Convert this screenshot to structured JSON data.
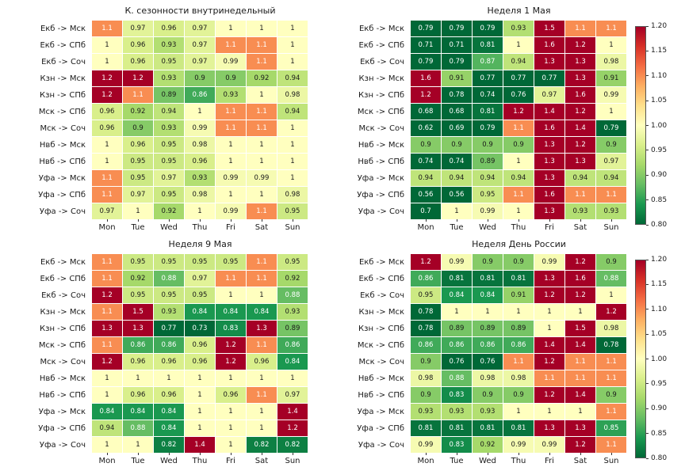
{
  "colormap": [
    "#006837",
    "#1a9850",
    "#66bd63",
    "#a6d96a",
    "#d9ef8b",
    "#ffffbf",
    "#fee08b",
    "#fdae61",
    "#f46d43",
    "#d73027",
    "#a50026"
  ],
  "colorbar": {
    "ticks": [
      "1.20",
      "1.15",
      "1.10",
      "1.05",
      "1.00",
      "0.95",
      "0.90",
      "0.85",
      "0.80"
    ],
    "vmin": 0.8,
    "vmax": 1.2
  },
  "chart_data": [
    {
      "type": "heatmap",
      "title": "К. сезонности внутринедельный",
      "colorbar": false,
      "vmin": 0.8,
      "vmax": 1.2,
      "columns": [
        "Mon",
        "Tue",
        "Wed",
        "Thu",
        "Fri",
        "Sat",
        "Sun"
      ],
      "rows": [
        "Екб -> Мск",
        "Екб -> СПб",
        "Екб -> Соч",
        "Кзн -> Мск",
        "Кзн -> СПб",
        "Мск -> СПб",
        "Мск -> Соч",
        "Нвб -> Мск",
        "Нвб -> СПб",
        "Уфа -> Мск",
        "Уфа -> СПб",
        "Уфа -> Соч"
      ],
      "values": [
        [
          1.1,
          0.97,
          0.96,
          0.97,
          1,
          1,
          1
        ],
        [
          1,
          0.96,
          0.93,
          0.97,
          1.1,
          1.1,
          1
        ],
        [
          1,
          0.96,
          0.95,
          0.97,
          0.99,
          1.1,
          1
        ],
        [
          1.2,
          1.2,
          0.93,
          0.9,
          0.9,
          0.92,
          0.94
        ],
        [
          1.2,
          1.1,
          0.89,
          0.86,
          0.93,
          1,
          0.98
        ],
        [
          0.96,
          0.92,
          0.94,
          1,
          1.1,
          1.1,
          0.94
        ],
        [
          0.96,
          0.9,
          0.93,
          0.99,
          1.1,
          1.1,
          1
        ],
        [
          1,
          0.96,
          0.95,
          0.98,
          1,
          1,
          1
        ],
        [
          1,
          0.95,
          0.95,
          0.96,
          1,
          1,
          1
        ],
        [
          1.1,
          0.95,
          0.97,
          0.93,
          0.99,
          0.99,
          1
        ],
        [
          1.1,
          0.97,
          0.95,
          0.98,
          1,
          1,
          0.98
        ],
        [
          0.97,
          1,
          0.92,
          1,
          0.99,
          1.1,
          0.95
        ]
      ]
    },
    {
      "type": "heatmap",
      "title": "Неделя 1 Мая",
      "colorbar": true,
      "vmin": 0.8,
      "vmax": 1.2,
      "columns": [
        "Mon",
        "Tue",
        "Wed",
        "Thu",
        "Fri",
        "Sat",
        "Sun"
      ],
      "rows": [
        "Екб -> Мск",
        "Екб -> СПб",
        "Екб -> Соч",
        "Кзн -> Мск",
        "Кзн -> СПб",
        "Мск -> СПб",
        "Мск -> Соч",
        "Нвб -> Мск",
        "Нвб -> СПб",
        "Уфа -> Мск",
        "Уфа -> СПб",
        "Уфа -> Соч"
      ],
      "values": [
        [
          0.79,
          0.79,
          0.79,
          0.93,
          1.5,
          1.1,
          1.1
        ],
        [
          0.71,
          0.71,
          0.81,
          1,
          1.6,
          1.2,
          1
        ],
        [
          0.79,
          0.79,
          0.87,
          0.94,
          1.3,
          1.3,
          0.98
        ],
        [
          1.6,
          0.91,
          0.77,
          0.77,
          0.77,
          1.3,
          0.91
        ],
        [
          1.2,
          0.78,
          0.74,
          0.76,
          0.97,
          1.6,
          0.99
        ],
        [
          0.68,
          0.68,
          0.81,
          1.2,
          1.4,
          1.2,
          1
        ],
        [
          0.62,
          0.69,
          0.79,
          1.1,
          1.6,
          1.4,
          0.79
        ],
        [
          0.9,
          0.9,
          0.9,
          0.9,
          1.3,
          1.2,
          0.9
        ],
        [
          0.74,
          0.74,
          0.89,
          1,
          1.3,
          1.3,
          0.97
        ],
        [
          0.94,
          0.94,
          0.94,
          0.94,
          1.3,
          0.94,
          0.94
        ],
        [
          0.56,
          0.56,
          0.95,
          1.1,
          1.6,
          1.1,
          1.1
        ],
        [
          0.7,
          1,
          0.99,
          1,
          1.3,
          0.93,
          0.93
        ]
      ]
    },
    {
      "type": "heatmap",
      "title": "Неделя 9 Мая",
      "colorbar": false,
      "vmin": 0.8,
      "vmax": 1.2,
      "columns": [
        "Mon",
        "Tue",
        "Wed",
        "Thu",
        "Fri",
        "Sat",
        "Sun"
      ],
      "rows": [
        "Екб -> Мск",
        "Екб -> СПб",
        "Екб -> Соч",
        "Кзн -> Мск",
        "Кзн -> СПб",
        "Мск -> СПб",
        "Мск -> Соч",
        "Нвб -> Мск",
        "Нвб -> СПб",
        "Уфа -> Мск",
        "Уфа -> СПб",
        "Уфа -> Соч"
      ],
      "values": [
        [
          1.1,
          0.95,
          0.95,
          0.95,
          0.95,
          1.1,
          0.95
        ],
        [
          1.1,
          0.92,
          0.88,
          0.97,
          1.1,
          1.1,
          0.92
        ],
        [
          1.2,
          0.95,
          0.95,
          0.95,
          1,
          1,
          0.88
        ],
        [
          1.1,
          1.5,
          0.93,
          0.84,
          0.84,
          0.84,
          0.93
        ],
        [
          1.3,
          1.3,
          0.77,
          0.73,
          0.83,
          1.3,
          0.89
        ],
        [
          1.1,
          0.86,
          0.86,
          0.96,
          1.2,
          1.1,
          0.86
        ],
        [
          1.2,
          0.96,
          0.96,
          0.96,
          1.2,
          0.96,
          0.84
        ],
        [
          1,
          1,
          1,
          1,
          1,
          1,
          1
        ],
        [
          1,
          0.96,
          0.96,
          1,
          0.96,
          1.1,
          0.97
        ],
        [
          0.84,
          0.84,
          0.84,
          1,
          1,
          1,
          1.4
        ],
        [
          0.94,
          0.88,
          0.84,
          1,
          1,
          1,
          1.2
        ],
        [
          1,
          1,
          0.82,
          1.4,
          1,
          0.82,
          0.82
        ]
      ]
    },
    {
      "type": "heatmap",
      "title": "Неделя День России",
      "colorbar": true,
      "vmin": 0.8,
      "vmax": 1.2,
      "columns": [
        "Mon",
        "Tue",
        "Wed",
        "Thu",
        "Fri",
        "Sat",
        "Sun"
      ],
      "rows": [
        "Екб -> Мск",
        "Екб -> СПб",
        "Екб -> Соч",
        "Кзн -> Мск",
        "Кзн -> СПб",
        "Мск -> СПб",
        "Мск -> Соч",
        "Нвб -> Мск",
        "Нвб -> СПб",
        "Уфа -> Мск",
        "Уфа -> СПб",
        "Уфа -> Соч"
      ],
      "values": [
        [
          1.2,
          0.99,
          0.9,
          0.9,
          0.99,
          1.2,
          0.9
        ],
        [
          0.86,
          0.81,
          0.81,
          0.81,
          1.3,
          1.6,
          0.88
        ],
        [
          0.95,
          0.84,
          0.84,
          0.91,
          1.2,
          1.2,
          1
        ],
        [
          0.78,
          1,
          1,
          1,
          1,
          1,
          1.2
        ],
        [
          0.78,
          0.89,
          0.89,
          0.89,
          1,
          1.5,
          0.98
        ],
        [
          0.86,
          0.86,
          0.86,
          0.86,
          1.4,
          1.4,
          0.78
        ],
        [
          0.9,
          0.76,
          0.76,
          1.1,
          1.2,
          1.1,
          1.1
        ],
        [
          0.98,
          0.88,
          0.98,
          0.98,
          1.1,
          1.1,
          1.1
        ],
        [
          0.9,
          0.83,
          0.9,
          0.9,
          1.2,
          1.4,
          0.9
        ],
        [
          0.93,
          0.93,
          0.93,
          1,
          1,
          1,
          1.1
        ],
        [
          0.81,
          0.81,
          0.81,
          0.81,
          1.3,
          1.3,
          0.85
        ],
        [
          0.99,
          0.83,
          0.92,
          0.99,
          0.99,
          1.2,
          1.1
        ]
      ]
    }
  ]
}
